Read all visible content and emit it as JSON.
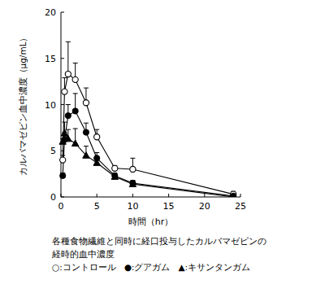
{
  "chart_data": {
    "type": "line",
    "y_label": "カルバマゼピン血中濃度（μg/mL）",
    "x_label": "時間（hr）",
    "caption": [
      "各種食物繊維と同時に経口投与したカルバマゼピンの",
      "経時的血中濃度"
    ],
    "x": [
      0.25,
      0.5,
      1,
      2,
      3.5,
      5,
      7.5,
      10,
      24
    ],
    "xlim": [
      0,
      25
    ],
    "xticks": [
      0,
      5,
      10,
      15,
      20,
      25
    ],
    "ylim": [
      0,
      20
    ],
    "yticks": [
      0,
      5,
      10,
      15,
      20
    ],
    "grid": false,
    "series": [
      {
        "name": "○:コントロール",
        "color": "#000000",
        "marker": "circle-open",
        "line_style": "solid",
        "values": [
          4.0,
          11.4,
          13.3,
          12.7,
          10.2,
          6.5,
          3.1,
          3.0,
          0.3
        ],
        "errors": [
          0.5,
          1.5,
          3.5,
          1.8,
          1.6,
          0.8,
          0.3,
          1.2,
          0.3
        ]
      },
      {
        "name": "●:グアガム",
        "color": "#000000",
        "marker": "circle",
        "line_style": "solid",
        "values": [
          2.3,
          6.2,
          8.8,
          9.3,
          7.0,
          4.2,
          2.3,
          1.5,
          0.1
        ],
        "errors": [
          0.3,
          0.8,
          1.2,
          1.9,
          1.0,
          0.6,
          0.3,
          0.3,
          0.2
        ]
      },
      {
        "name": "▲:キサンタンガム",
        "color": "#000000",
        "marker": "triangle",
        "line_style": "solid",
        "values": [
          6.0,
          6.9,
          6.3,
          5.8,
          4.5,
          3.7,
          2.2,
          1.4,
          0.0
        ],
        "errors": [
          0.3,
          1.2,
          1.0,
          1.6,
          1.0,
          0.6,
          0.3,
          0.3,
          0.2
        ]
      }
    ]
  }
}
